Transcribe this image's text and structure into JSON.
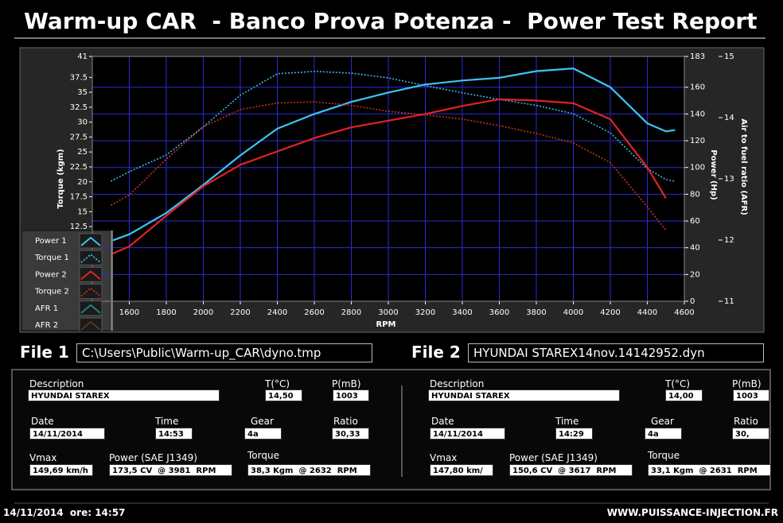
{
  "header": {
    "title": "Warm-up CAR  - Banco Prova Potenza -  Power Test Report"
  },
  "chart_data": {
    "type": "line",
    "x_label": "RPM",
    "y_label": "Torque (kgm)",
    "y2_label": "Power (Hp)",
    "y3_label": "Air to fuel ratio (AFR)",
    "x": [
      1500,
      1600,
      1800,
      2000,
      2200,
      2400,
      2600,
      2800,
      3000,
      3200,
      3400,
      3600,
      3800,
      4000,
      4200,
      4400,
      4500,
      4550
    ],
    "xlim": [
      1400,
      4600
    ],
    "xticks": [
      1600,
      1800,
      2000,
      2200,
      2400,
      2600,
      2800,
      3000,
      3200,
      3400,
      3600,
      3800,
      4000,
      4200,
      4400,
      4600
    ],
    "ylim": [
      0,
      41
    ],
    "yticks": [
      12.5,
      15,
      17.5,
      20,
      22.5,
      25,
      27.5,
      30,
      32.5,
      35,
      37.5,
      41
    ],
    "y2lim": [
      0,
      183
    ],
    "y2ticks": [
      0,
      20,
      40,
      60,
      80,
      100,
      120,
      140,
      160,
      183
    ],
    "y3lim": [
      11,
      15
    ],
    "y3ticks": [
      11,
      12,
      13,
      14,
      15
    ],
    "grid": true,
    "legend": "bottom-left",
    "series": [
      {
        "name": "Power 1",
        "color": "#3fc3f2",
        "axis": "y2",
        "line_style": "solid",
        "values": [
          45,
          50,
          66,
          87,
          109,
          129,
          140,
          149,
          156,
          162,
          165,
          167,
          172,
          174,
          160,
          133,
          127,
          128
        ]
      },
      {
        "name": "Torque 1",
        "color": "#3fb4f0",
        "axis": "y",
        "line_style": "dotted",
        "values": [
          20.1,
          21.7,
          24.5,
          29.2,
          34.5,
          38.1,
          38.5,
          38.2,
          37.4,
          36.1,
          34.9,
          33.8,
          32.8,
          31.4,
          28.2,
          22.2,
          20.4,
          20.1
        ]
      },
      {
        "name": "Power 2",
        "color": "#e32222",
        "axis": "y2",
        "line_style": "solid",
        "values": [
          35,
          41,
          64,
          86,
          102,
          112,
          122,
          130,
          135,
          140,
          146,
          151,
          150,
          148,
          136,
          100,
          77,
          null
        ]
      },
      {
        "name": "Torque 2",
        "color": "#c8331f",
        "axis": "y",
        "line_style": "dotted",
        "values": [
          16.1,
          17.8,
          23.8,
          29.2,
          32.1,
          33.2,
          33.4,
          32.8,
          31.8,
          31.2,
          30.5,
          29.4,
          28.1,
          26.5,
          23.2,
          15.8,
          11.9,
          null
        ]
      },
      {
        "name": "AFR 1",
        "color": "#1f7f86",
        "axis": "y3",
        "line_style": "solid",
        "values": [
          null,
          null,
          null,
          null,
          null,
          null,
          null,
          null,
          null,
          null,
          null,
          null,
          null,
          null,
          null,
          null,
          null,
          null
        ]
      },
      {
        "name": "AFR 2",
        "color": "#5c3322",
        "axis": "y3",
        "line_style": "solid",
        "values": [
          null,
          null,
          null,
          null,
          null,
          null,
          null,
          null,
          null,
          null,
          null,
          null,
          null,
          null,
          null,
          null,
          null,
          null
        ]
      }
    ]
  },
  "files": [
    {
      "label": "File 1",
      "path": "C:\\Users\\Public\\Warm-up_CAR\\dyno.tmp"
    },
    {
      "label": "File 2",
      "path": "HYUNDAI STAREX14nov.14142952.dyn"
    }
  ],
  "reports": [
    {
      "fields": [
        {
          "label": "Description",
          "value": "HYUNDAI STAREX"
        },
        {
          "label": "T(°C)",
          "value": "14,50"
        },
        {
          "label": "P(mB)",
          "value": "1003"
        },
        {
          "label": "Date",
          "value": "14/11/2014"
        },
        {
          "label": "Time",
          "value": "14:53"
        },
        {
          "label": "Gear",
          "value": "4a"
        },
        {
          "label": "Ratio",
          "value": "30,33"
        },
        {
          "label": "Vmax",
          "value": "149,69 km/h"
        },
        {
          "label": "Power (SAE J1349)",
          "value": "173,5 CV  @ 3981  RPM"
        },
        {
          "label": "Torque",
          "value": "38,3 Kgm  @ 2632  RPM"
        }
      ]
    },
    {
      "fields": [
        {
          "label": "Description",
          "value": "HYUNDAI STAREX"
        },
        {
          "label": "T(°C)",
          "value": "14,00"
        },
        {
          "label": "P(mB)",
          "value": "1003"
        },
        {
          "label": "Date",
          "value": "14/11/2014"
        },
        {
          "label": "Time",
          "value": "14:29"
        },
        {
          "label": "Gear",
          "value": "4a"
        },
        {
          "label": "Ratio",
          "value": "30,"
        },
        {
          "label": "Vmax",
          "value": "147,80 km/"
        },
        {
          "label": "Power (SAE J1349)",
          "value": "150,6 CV  @ 3617  RPM"
        },
        {
          "label": "Torque",
          "value": "33,1 Kgm  @ 2631  RPM"
        }
      ]
    }
  ],
  "footer": {
    "timestamp": "14/11/2014  ore: 14:57",
    "website": "WWW.PUISSANCE-INJECTION.FR"
  }
}
